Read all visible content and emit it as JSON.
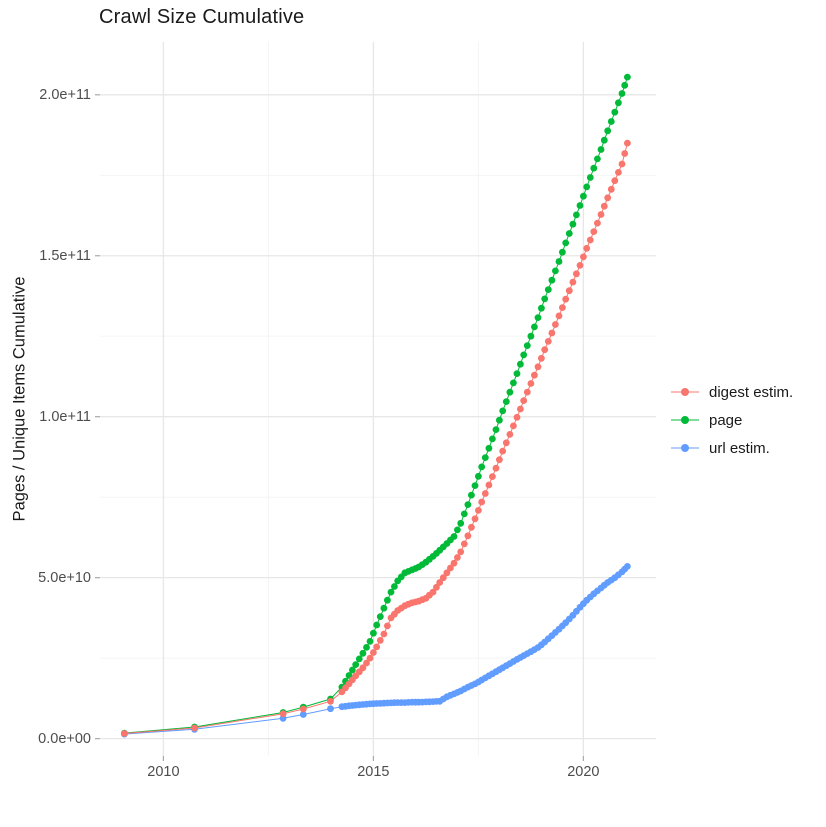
{
  "chart_data": {
    "type": "line",
    "markers": true,
    "title": "Crawl Size Cumulative",
    "xlabel": "",
    "ylabel": "Pages / Unique Items Cumulative",
    "value_unit": "count (points stored as [year, value_in_billions_1e9])",
    "grid": true,
    "legend_position": "right",
    "x_tick_labels": [
      "2010",
      "2015",
      "2020"
    ],
    "x_tick_years": [
      2010,
      2015,
      2020
    ],
    "x_minor_years": [
      2012.5,
      2017.5
    ],
    "y_tick_labels": [
      "0.0e+00",
      "5.0e+10",
      "1.0e+11",
      "1.5e+11",
      "2.0e+11"
    ],
    "y_tick_values_e9": [
      0,
      50,
      100,
      150,
      200
    ],
    "y_minor_values_e9": [
      25,
      75,
      125,
      175
    ],
    "x_domain_years": [
      2008.49,
      2021.73
    ],
    "y_domain_e9": [
      -5.4,
      216.4
    ],
    "series": [
      {
        "name": "digest estim.",
        "color": "#F8766D",
        "points_year_e9": [
          [
            2009.07,
            1.6
          ],
          [
            2010.74,
            3.3
          ],
          [
            2012.85,
            7.7
          ],
          [
            2013.33,
            9.2
          ],
          [
            2013.98,
            11.6
          ],
          [
            2014.25,
            14.5
          ],
          [
            2014.42,
            17.0
          ],
          [
            2014.58,
            19.5
          ],
          [
            2014.75,
            22.0
          ],
          [
            2014.92,
            25.0
          ],
          [
            2015.08,
            28.5
          ],
          [
            2015.25,
            32.5
          ],
          [
            2015.42,
            37.5
          ],
          [
            2015.58,
            39.8
          ],
          [
            2015.75,
            41.3
          ],
          [
            2015.92,
            42.2
          ],
          [
            2016.08,
            42.7
          ],
          [
            2016.25,
            43.6
          ],
          [
            2016.42,
            45.5
          ],
          [
            2016.58,
            48.5
          ],
          [
            2016.75,
            51.5
          ],
          [
            2016.92,
            54.5
          ],
          [
            2017.08,
            58.0
          ],
          [
            2017.25,
            63.0
          ],
          [
            2017.42,
            68.3
          ],
          [
            2017.58,
            73.5
          ],
          [
            2017.75,
            78.8
          ],
          [
            2017.92,
            84.0
          ],
          [
            2018.08,
            89.3
          ],
          [
            2018.25,
            94.5
          ],
          [
            2018.42,
            99.8
          ],
          [
            2018.58,
            105.0
          ],
          [
            2018.75,
            110.3
          ],
          [
            2018.92,
            115.5
          ],
          [
            2019.08,
            120.8
          ],
          [
            2019.25,
            126.0
          ],
          [
            2019.42,
            131.3
          ],
          [
            2019.58,
            136.5
          ],
          [
            2019.75,
            141.8
          ],
          [
            2019.92,
            147.0
          ],
          [
            2020.08,
            152.3
          ],
          [
            2020.25,
            157.5
          ],
          [
            2020.42,
            162.8
          ],
          [
            2020.58,
            168.0
          ],
          [
            2020.75,
            173.3
          ],
          [
            2020.92,
            178.5
          ],
          [
            2021.05,
            185.0
          ]
        ]
      },
      {
        "name": "page",
        "color": "#00BA38",
        "points_year_e9": [
          [
            2009.07,
            1.7
          ],
          [
            2010.74,
            3.6
          ],
          [
            2012.85,
            8.1
          ],
          [
            2013.33,
            9.8
          ],
          [
            2013.98,
            12.3
          ],
          [
            2014.25,
            16.0
          ],
          [
            2014.42,
            19.6
          ],
          [
            2014.58,
            23.0
          ],
          [
            2014.75,
            26.5
          ],
          [
            2014.92,
            30.2
          ],
          [
            2015.08,
            35.3
          ],
          [
            2015.25,
            40.5
          ],
          [
            2015.42,
            45.5
          ],
          [
            2015.58,
            49.0
          ],
          [
            2015.75,
            51.5
          ],
          [
            2015.92,
            52.4
          ],
          [
            2016.08,
            53.3
          ],
          [
            2016.25,
            54.8
          ],
          [
            2016.42,
            56.6
          ],
          [
            2016.58,
            58.5
          ],
          [
            2016.75,
            60.6
          ],
          [
            2016.92,
            62.8
          ],
          [
            2017.08,
            66.9
          ],
          [
            2017.25,
            72.7
          ],
          [
            2017.42,
            78.6
          ],
          [
            2017.58,
            84.4
          ],
          [
            2017.75,
            90.2
          ],
          [
            2017.92,
            96.0
          ],
          [
            2018.08,
            101.8
          ],
          [
            2018.25,
            107.6
          ],
          [
            2018.42,
            113.4
          ],
          [
            2018.58,
            119.2
          ],
          [
            2018.75,
            125.0
          ],
          [
            2018.92,
            130.8
          ],
          [
            2019.08,
            136.6
          ],
          [
            2019.25,
            142.4
          ],
          [
            2019.42,
            148.2
          ],
          [
            2019.58,
            154.0
          ],
          [
            2019.75,
            159.8
          ],
          [
            2019.92,
            165.6
          ],
          [
            2020.08,
            171.4
          ],
          [
            2020.25,
            177.2
          ],
          [
            2020.42,
            183.0
          ],
          [
            2020.58,
            188.8
          ],
          [
            2020.75,
            194.6
          ],
          [
            2020.92,
            200.4
          ],
          [
            2021.05,
            205.5
          ]
        ]
      },
      {
        "name": "url estim.",
        "color": "#619CFF",
        "points_year_e9": [
          [
            2009.07,
            1.4
          ],
          [
            2010.74,
            2.9
          ],
          [
            2012.85,
            6.3
          ],
          [
            2013.33,
            7.5
          ],
          [
            2013.98,
            9.3
          ],
          [
            2014.25,
            9.9
          ],
          [
            2014.42,
            10.2
          ],
          [
            2014.58,
            10.4
          ],
          [
            2014.75,
            10.6
          ],
          [
            2014.92,
            10.8
          ],
          [
            2015.08,
            10.9
          ],
          [
            2015.25,
            11.0
          ],
          [
            2015.42,
            11.1
          ],
          [
            2015.58,
            11.2
          ],
          [
            2015.75,
            11.2
          ],
          [
            2015.92,
            11.3
          ],
          [
            2016.08,
            11.3
          ],
          [
            2016.25,
            11.4
          ],
          [
            2016.42,
            11.5
          ],
          [
            2016.58,
            11.6
          ],
          [
            2016.75,
            13.0
          ],
          [
            2016.92,
            13.9
          ],
          [
            2017.08,
            14.8
          ],
          [
            2017.25,
            16.0
          ],
          [
            2017.42,
            17.0
          ],
          [
            2017.58,
            18.2
          ],
          [
            2017.75,
            19.5
          ],
          [
            2017.92,
            20.8
          ],
          [
            2018.08,
            22.0
          ],
          [
            2018.25,
            23.3
          ],
          [
            2018.42,
            24.6
          ],
          [
            2018.58,
            25.8
          ],
          [
            2018.75,
            27.0
          ],
          [
            2018.92,
            28.3
          ],
          [
            2019.08,
            30.0
          ],
          [
            2019.25,
            32.0
          ],
          [
            2019.42,
            34.0
          ],
          [
            2019.58,
            36.0
          ],
          [
            2019.75,
            38.3
          ],
          [
            2019.92,
            40.8
          ],
          [
            2020.08,
            43.0
          ],
          [
            2020.25,
            45.0
          ],
          [
            2020.42,
            46.8
          ],
          [
            2020.58,
            48.5
          ],
          [
            2020.75,
            50.0
          ],
          [
            2020.92,
            51.8
          ],
          [
            2021.05,
            53.5
          ]
        ]
      }
    ],
    "style": {
      "major_grid_color": "#E7E7E7",
      "minor_grid_color": "#F3F3F3",
      "tick_color": "#A9A9A9",
      "tick_label_color": "#4d4d4d",
      "text_color": "#1a1a1a",
      "background": "#FFFFFF"
    }
  }
}
